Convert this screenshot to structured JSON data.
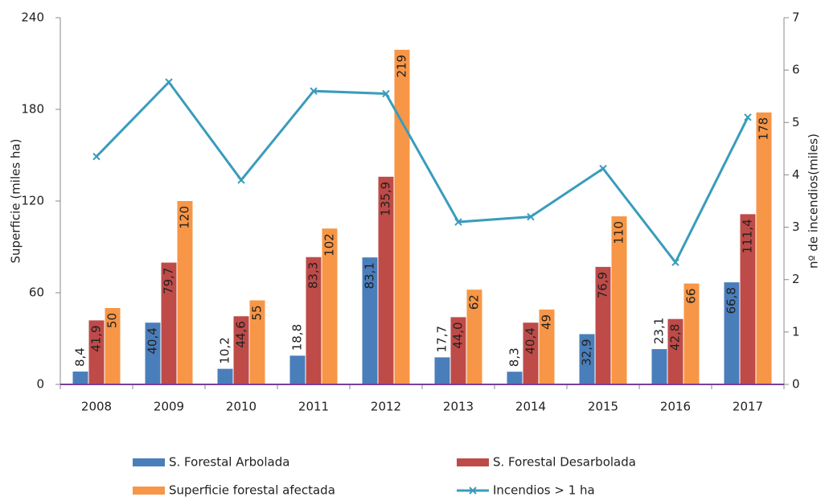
{
  "chart_data": {
    "type": "bar",
    "categories": [
      "2008",
      "2009",
      "2010",
      "2011",
      "2012",
      "2013",
      "2014",
      "2015",
      "2016",
      "2017"
    ],
    "ylabel": "Superficie (miles ha)",
    "y2label": "nº de incendios(miles)",
    "ylim": [
      0,
      240
    ],
    "yticks": [
      0,
      60,
      120,
      180,
      240
    ],
    "y2lim": [
      0,
      7
    ],
    "y2ticks": [
      0,
      1,
      2,
      3,
      4,
      5,
      6,
      7
    ],
    "legend": "bottom",
    "series": [
      {
        "name": "S. Forestal Arbolada",
        "color": "#4a7ebb",
        "type": "bar",
        "values": [
          8.4,
          40.4,
          10.2,
          18.8,
          83.1,
          17.7,
          8.3,
          32.9,
          23.1,
          66.8
        ],
        "value_labels": [
          "8,4",
          "40,4",
          "10,2",
          "18,8",
          "83,1",
          "17,7",
          "8,3",
          "32,9",
          "23,1",
          "66,8"
        ]
      },
      {
        "name": "S. Forestal Desarbolada",
        "color": "#be4b48",
        "type": "bar",
        "values": [
          41.9,
          79.7,
          44.6,
          83.3,
          135.9,
          44.0,
          40.4,
          76.9,
          42.8,
          111.4
        ],
        "value_labels": [
          "41,9",
          "79,7",
          "44,6",
          "83,3",
          "135,9",
          "44,0",
          "40,4",
          "76,9",
          "42,8",
          "111,4"
        ]
      },
      {
        "name": "Superficie forestal afectada",
        "color": "#f79646",
        "type": "bar",
        "values": [
          50,
          120,
          55,
          102,
          219,
          62,
          49,
          110,
          66,
          178
        ]
      },
      {
        "name": "Incendios > 1 ha",
        "color": "#3a9cbc",
        "type": "line",
        "axis": "y2",
        "values": [
          4.35,
          5.77,
          3.9,
          5.6,
          5.55,
          3.1,
          3.2,
          4.12,
          2.33,
          5.1
        ]
      }
    ]
  }
}
